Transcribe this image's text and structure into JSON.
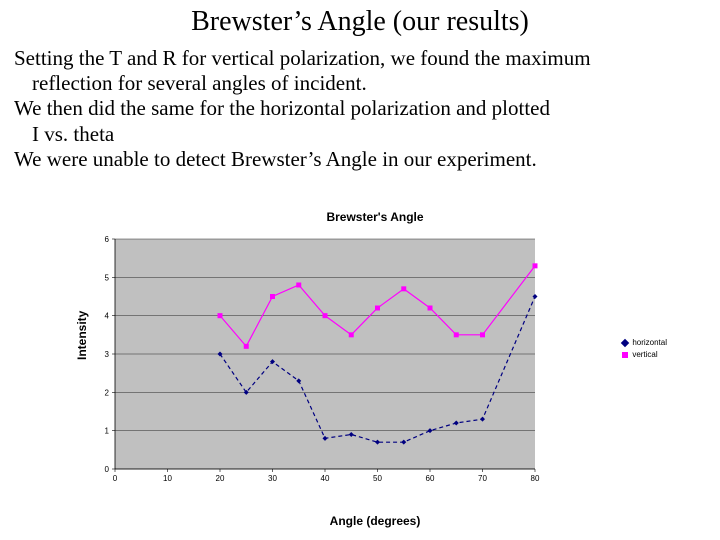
{
  "title": "Brewster’s Angle (our results)",
  "paragraphs": [
    "Setting the T and R for vertical polarization, we found the maximum",
    "  reflection for several angles of incident.",
    "We then did the same for the horizontal polarization and plotted",
    "  I vs. theta",
    "We were unable to detect Brewster’s Angle in our experiment."
  ],
  "chart": {
    "type": "line-scatter",
    "title": "Brewster's Angle",
    "xlabel": "Angle (degrees)",
    "ylabel": "Intensity",
    "xlim": [
      0,
      80
    ],
    "ylim": [
      0,
      6
    ],
    "xtick_step": 10,
    "ytick_step": 1,
    "plot_background": "#c0c0c0",
    "outer_background": "#ffffff",
    "gridline_color": "#000000",
    "gridline_width": 0.4,
    "tick_fontsize": 8,
    "title_fontsize": 12,
    "label_fontsize": 12,
    "series": [
      {
        "name": "horizontal",
        "color": "#000080",
        "marker": "diamond",
        "marker_size": 5,
        "line_dash": "4,3",
        "line_width": 1.2,
        "x": [
          20,
          25,
          30,
          35,
          40,
          45,
          50,
          55,
          60,
          65,
          70,
          80
        ],
        "y": [
          3.0,
          2.0,
          2.8,
          2.3,
          0.8,
          0.9,
          0.7,
          0.7,
          1.0,
          1.2,
          1.3,
          4.5
        ]
      },
      {
        "name": "vertical",
        "color": "#ff00ff",
        "marker": "square",
        "marker_size": 5,
        "line_dash": "none",
        "line_width": 1.2,
        "x": [
          20,
          25,
          30,
          35,
          40,
          45,
          50,
          55,
          60,
          65,
          70,
          80
        ],
        "y": [
          4.0,
          3.2,
          4.5,
          4.8,
          4.0,
          3.5,
          4.2,
          4.7,
          4.2,
          3.5,
          3.5,
          5.3
        ]
      }
    ],
    "legend": {
      "position": "right-middle",
      "items": [
        {
          "label": "horizontal",
          "color": "#000080",
          "marker": "diamond"
        },
        {
          "label": "vertical",
          "color": "#ff00ff",
          "marker": "square"
        }
      ]
    }
  }
}
